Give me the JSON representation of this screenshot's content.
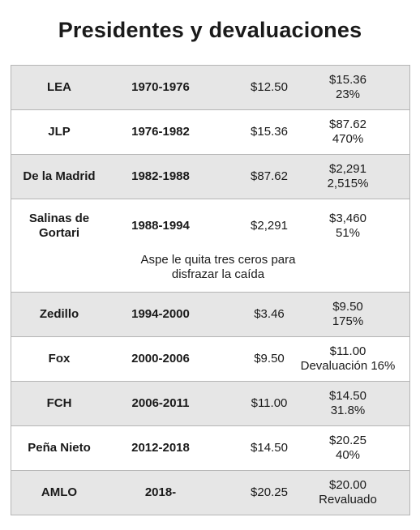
{
  "title": "Presidentes y devaluaciones",
  "rows": [
    {
      "name": "LEA",
      "period": "1970-1976",
      "start": "$12.50",
      "end": "$15.36",
      "change": "23%"
    },
    {
      "name": "JLP",
      "period": "1976-1982",
      "start": "$15.36",
      "end": "$87.62",
      "change": "470%"
    },
    {
      "name": "De la Madrid",
      "period": "1982-1988",
      "start": "$87.62",
      "end": "$2,291",
      "change": "2,515%"
    },
    {
      "name_line1": "Salinas de",
      "name_line2": "Gortari",
      "period": "1988-1994",
      "start": "$2,291",
      "end": "$3,460",
      "change": "51%",
      "note_line1": "Aspe le quita tres ceros para",
      "note_line2": "disfrazar la caída"
    },
    {
      "name": "Zedillo",
      "period": "1994-2000",
      "start": "$3.46",
      "end": "$9.50",
      "change": "175%"
    },
    {
      "name": "Fox",
      "period": "2000-2006",
      "start": "$9.50",
      "end": "$11.00",
      "change": "Devaluación 16%"
    },
    {
      "name": "FCH",
      "period": "2006-2011",
      "start": "$11.00",
      "end": "$14.50",
      "change": "31.8%"
    },
    {
      "name": "Peña Nieto",
      "period": "2012-2018",
      "start": "$14.50",
      "end": "$20.25",
      "change": "40%"
    },
    {
      "name": "AMLO",
      "period": "2018-",
      "start": "$20.25",
      "end": "$20.00",
      "change": "Revaluado"
    }
  ]
}
